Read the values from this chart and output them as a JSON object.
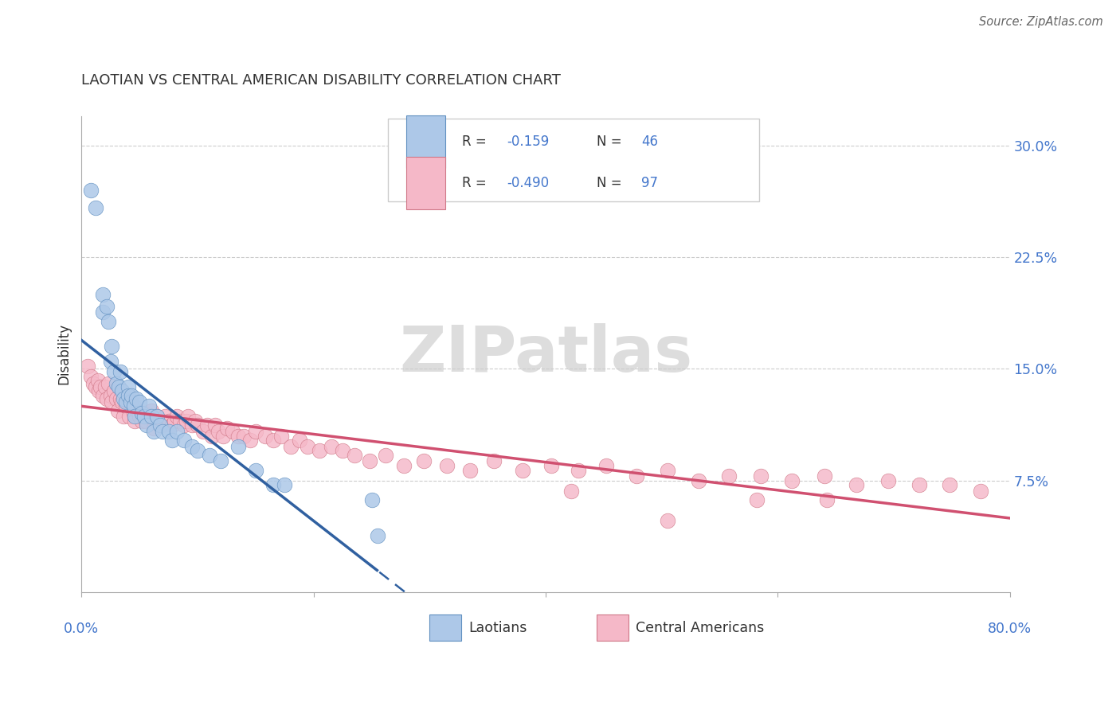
{
  "title": "LAOTIAN VS CENTRAL AMERICAN DISABILITY CORRELATION CHART",
  "source": "Source: ZipAtlas.com",
  "ylabel": "Disability",
  "xrange": [
    0.0,
    0.8
  ],
  "yrange": [
    0.0,
    0.32
  ],
  "yticks": [
    0.0,
    0.075,
    0.15,
    0.225,
    0.3
  ],
  "ytick_labels": [
    "",
    "7.5%",
    "15.0%",
    "22.5%",
    "30.0%"
  ],
  "laotian_R": -0.159,
  "laotian_N": 46,
  "central_R": -0.49,
  "central_N": 97,
  "blue_face": "#adc8e8",
  "blue_edge": "#6090c0",
  "blue_line": "#3060a0",
  "pink_face": "#f5b8c8",
  "pink_edge": "#d07888",
  "pink_line": "#d05070",
  "text_dark": "#333333",
  "text_blue": "#4477cc",
  "grid_color": "#cccccc",
  "axis_color": "#aaaaaa",
  "watermark_color": "#dddddd",
  "laotian_x": [
    0.008,
    0.012,
    0.018,
    0.018,
    0.022,
    0.023,
    0.025,
    0.026,
    0.028,
    0.03,
    0.032,
    0.033,
    0.035,
    0.036,
    0.038,
    0.04,
    0.04,
    0.042,
    0.043,
    0.045,
    0.046,
    0.047,
    0.05,
    0.052,
    0.054,
    0.056,
    0.058,
    0.06,
    0.062,
    0.065,
    0.068,
    0.07,
    0.075,
    0.078,
    0.082,
    0.088,
    0.095,
    0.1,
    0.11,
    0.12,
    0.135,
    0.15,
    0.165,
    0.175,
    0.25,
    0.255
  ],
  "laotian_y": [
    0.27,
    0.258,
    0.2,
    0.188,
    0.192,
    0.182,
    0.155,
    0.165,
    0.148,
    0.14,
    0.138,
    0.148,
    0.135,
    0.13,
    0.128,
    0.138,
    0.132,
    0.128,
    0.132,
    0.125,
    0.118,
    0.13,
    0.128,
    0.12,
    0.118,
    0.112,
    0.125,
    0.118,
    0.108,
    0.118,
    0.112,
    0.108,
    0.108,
    0.102,
    0.108,
    0.102,
    0.098,
    0.095,
    0.092,
    0.088,
    0.098,
    0.082,
    0.072,
    0.072,
    0.062,
    0.038
  ],
  "central_x": [
    0.005,
    0.008,
    0.01,
    0.012,
    0.014,
    0.015,
    0.016,
    0.018,
    0.02,
    0.022,
    0.023,
    0.025,
    0.026,
    0.028,
    0.03,
    0.031,
    0.033,
    0.035,
    0.036,
    0.038,
    0.04,
    0.041,
    0.043,
    0.045,
    0.046,
    0.048,
    0.05,
    0.052,
    0.054,
    0.055,
    0.058,
    0.06,
    0.062,
    0.065,
    0.068,
    0.07,
    0.072,
    0.075,
    0.078,
    0.08,
    0.082,
    0.085,
    0.088,
    0.09,
    0.092,
    0.095,
    0.098,
    0.1,
    0.105,
    0.108,
    0.112,
    0.115,
    0.118,
    0.122,
    0.125,
    0.13,
    0.135,
    0.14,
    0.145,
    0.15,
    0.158,
    0.165,
    0.172,
    0.18,
    0.188,
    0.195,
    0.205,
    0.215,
    0.225,
    0.235,
    0.248,
    0.262,
    0.278,
    0.295,
    0.315,
    0.335,
    0.355,
    0.38,
    0.405,
    0.428,
    0.452,
    0.478,
    0.505,
    0.532,
    0.558,
    0.585,
    0.612,
    0.64,
    0.668,
    0.695,
    0.722,
    0.748,
    0.775,
    0.422,
    0.505,
    0.582,
    0.642
  ],
  "central_y": [
    0.152,
    0.145,
    0.14,
    0.138,
    0.142,
    0.135,
    0.138,
    0.132,
    0.138,
    0.13,
    0.14,
    0.132,
    0.128,
    0.135,
    0.13,
    0.122,
    0.13,
    0.128,
    0.118,
    0.125,
    0.128,
    0.118,
    0.125,
    0.12,
    0.115,
    0.122,
    0.118,
    0.115,
    0.12,
    0.115,
    0.118,
    0.122,
    0.11,
    0.118,
    0.115,
    0.112,
    0.118,
    0.115,
    0.112,
    0.115,
    0.118,
    0.115,
    0.112,
    0.115,
    0.118,
    0.112,
    0.115,
    0.112,
    0.108,
    0.112,
    0.105,
    0.112,
    0.108,
    0.105,
    0.11,
    0.108,
    0.105,
    0.105,
    0.102,
    0.108,
    0.105,
    0.102,
    0.105,
    0.098,
    0.102,
    0.098,
    0.095,
    0.098,
    0.095,
    0.092,
    0.088,
    0.092,
    0.085,
    0.088,
    0.085,
    0.082,
    0.088,
    0.082,
    0.085,
    0.082,
    0.085,
    0.078,
    0.082,
    0.075,
    0.078,
    0.078,
    0.075,
    0.078,
    0.072,
    0.075,
    0.072,
    0.072,
    0.068,
    0.068,
    0.048,
    0.062,
    0.062
  ],
  "figsize": [
    14.06,
    8.92
  ],
  "dpi": 100
}
